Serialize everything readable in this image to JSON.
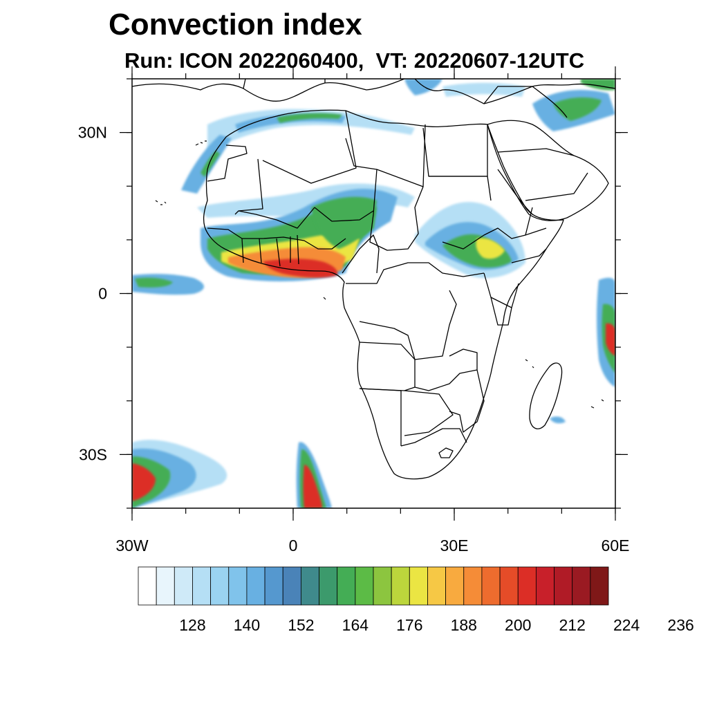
{
  "title": "Convection index",
  "subtitle": "Run: ICON 2022060400,  VT: 20220607-12UTC",
  "map": {
    "lon_range": [
      -30,
      60
    ],
    "lat_range": [
      -40,
      40
    ],
    "x_ticks": [
      {
        "lon": -30,
        "label": "30W"
      },
      {
        "lon": 0,
        "label": "0"
      },
      {
        "lon": 30,
        "label": "30E"
      },
      {
        "lon": 60,
        "label": "60E"
      }
    ],
    "y_ticks": [
      {
        "lat": 30,
        "label": "30N"
      },
      {
        "lat": 0,
        "label": "0"
      },
      {
        "lat": -30,
        "label": "30S"
      }
    ],
    "minor_lon_step": 10,
    "minor_lat_step": 10
  },
  "colorbar": {
    "colors": [
      "#ffffff",
      "#e8f5fc",
      "#cfeaf8",
      "#b5dff5",
      "#9ad3f1",
      "#80c3eb",
      "#68b0e2",
      "#5598cf",
      "#4a83b8",
      "#3f8a8c",
      "#3c9a6c",
      "#44ad55",
      "#5cbb46",
      "#8cc53f",
      "#bcd63c",
      "#ebe543",
      "#f6c845",
      "#f8aa3f",
      "#f58c37",
      "#ee6c2e",
      "#e54c28",
      "#dc2e26",
      "#c8202a",
      "#b01b26",
      "#9a1a22",
      "#7f1818"
    ],
    "labels": [
      "128",
      "140",
      "152",
      "164",
      "176",
      "188",
      "200",
      "212",
      "224",
      "236"
    ]
  },
  "field_levels": [
    {
      "name": "light-blue",
      "color": "#b5dff5"
    },
    {
      "name": "blue",
      "color": "#68b0e2"
    },
    {
      "name": "green",
      "color": "#44ad55"
    },
    {
      "name": "yellow",
      "color": "#ebe543"
    },
    {
      "name": "orange",
      "color": "#f58c37"
    },
    {
      "name": "red",
      "color": "#dc2e26"
    }
  ]
}
